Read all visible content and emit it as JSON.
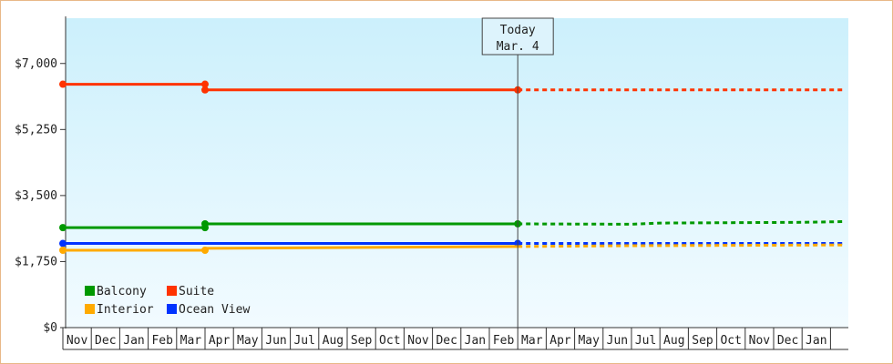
{
  "chart_data": {
    "type": "line",
    "y_ticks": [
      {
        "value": 0,
        "label": "$0"
      },
      {
        "value": 1750,
        "label": "$1,750"
      },
      {
        "value": 3500,
        "label": "$3,500"
      },
      {
        "value": 5250,
        "label": "$5,250"
      },
      {
        "value": 7000,
        "label": "$7,000"
      }
    ],
    "ylim": [
      0,
      8200
    ],
    "x_months": [
      "Nov",
      "Dec",
      "Jan",
      "Feb",
      "Mar",
      "Apr",
      "May",
      "Jun",
      "Jul",
      "Aug",
      "Sep",
      "Oct",
      "Nov",
      "Dec",
      "Jan",
      "Feb",
      "Mar",
      "Apr",
      "May",
      "Jun",
      "Jul",
      "Aug",
      "Sep",
      "Oct",
      "Nov",
      "Dec",
      "Jan"
    ],
    "today": {
      "line1": "Today",
      "line2": "Mar. 4",
      "month_index": 16
    },
    "series": [
      {
        "name": "Suite",
        "color": "#ff3300",
        "actual": [
          [
            0,
            6450
          ],
          [
            5,
            6450
          ],
          [
            5,
            6300
          ],
          [
            16,
            6300
          ]
        ],
        "points": [
          [
            0,
            6450
          ],
          [
            5,
            6450
          ],
          [
            5,
            6300
          ],
          [
            16,
            6300
          ]
        ],
        "forecast": [
          [
            16,
            6300
          ],
          [
            27.5,
            6300
          ]
        ]
      },
      {
        "name": "Balcony",
        "color": "#009900",
        "actual": [
          [
            0,
            2650
          ],
          [
            5,
            2650
          ],
          [
            5,
            2750
          ],
          [
            16,
            2750
          ]
        ],
        "points": [
          [
            0,
            2650
          ],
          [
            5,
            2650
          ],
          [
            5,
            2750
          ],
          [
            16,
            2750
          ]
        ],
        "forecast": [
          [
            16,
            2750
          ],
          [
            20,
            2740
          ],
          [
            21,
            2770
          ],
          [
            26,
            2790
          ],
          [
            27.5,
            2810
          ]
        ]
      },
      {
        "name": "Ocean View",
        "color": "#0033ff",
        "actual": [
          [
            0,
            2230
          ],
          [
            16,
            2230
          ]
        ],
        "points": [
          [
            0,
            2230
          ],
          [
            16,
            2230
          ]
        ],
        "forecast": [
          [
            16,
            2230
          ],
          [
            27.5,
            2230
          ]
        ]
      },
      {
        "name": "Interior",
        "color": "#ffaa00",
        "actual": [
          [
            0,
            2050
          ],
          [
            5,
            2050
          ],
          [
            5,
            2100
          ],
          [
            16,
            2150
          ]
        ],
        "points": [
          [
            0,
            2050
          ],
          [
            5,
            2050
          ]
        ],
        "forecast": [
          [
            16,
            2150
          ],
          [
            20,
            2170
          ],
          [
            27.5,
            2190
          ]
        ]
      }
    ],
    "legend": [
      {
        "label": "Balcony",
        "color": "#009900"
      },
      {
        "label": "Suite",
        "color": "#ff3300"
      },
      {
        "label": "Interior",
        "color": "#ffaa00"
      },
      {
        "label": "Ocean View",
        "color": "#0033ff"
      }
    ],
    "legend_position": "bottom-left",
    "grid": false
  }
}
